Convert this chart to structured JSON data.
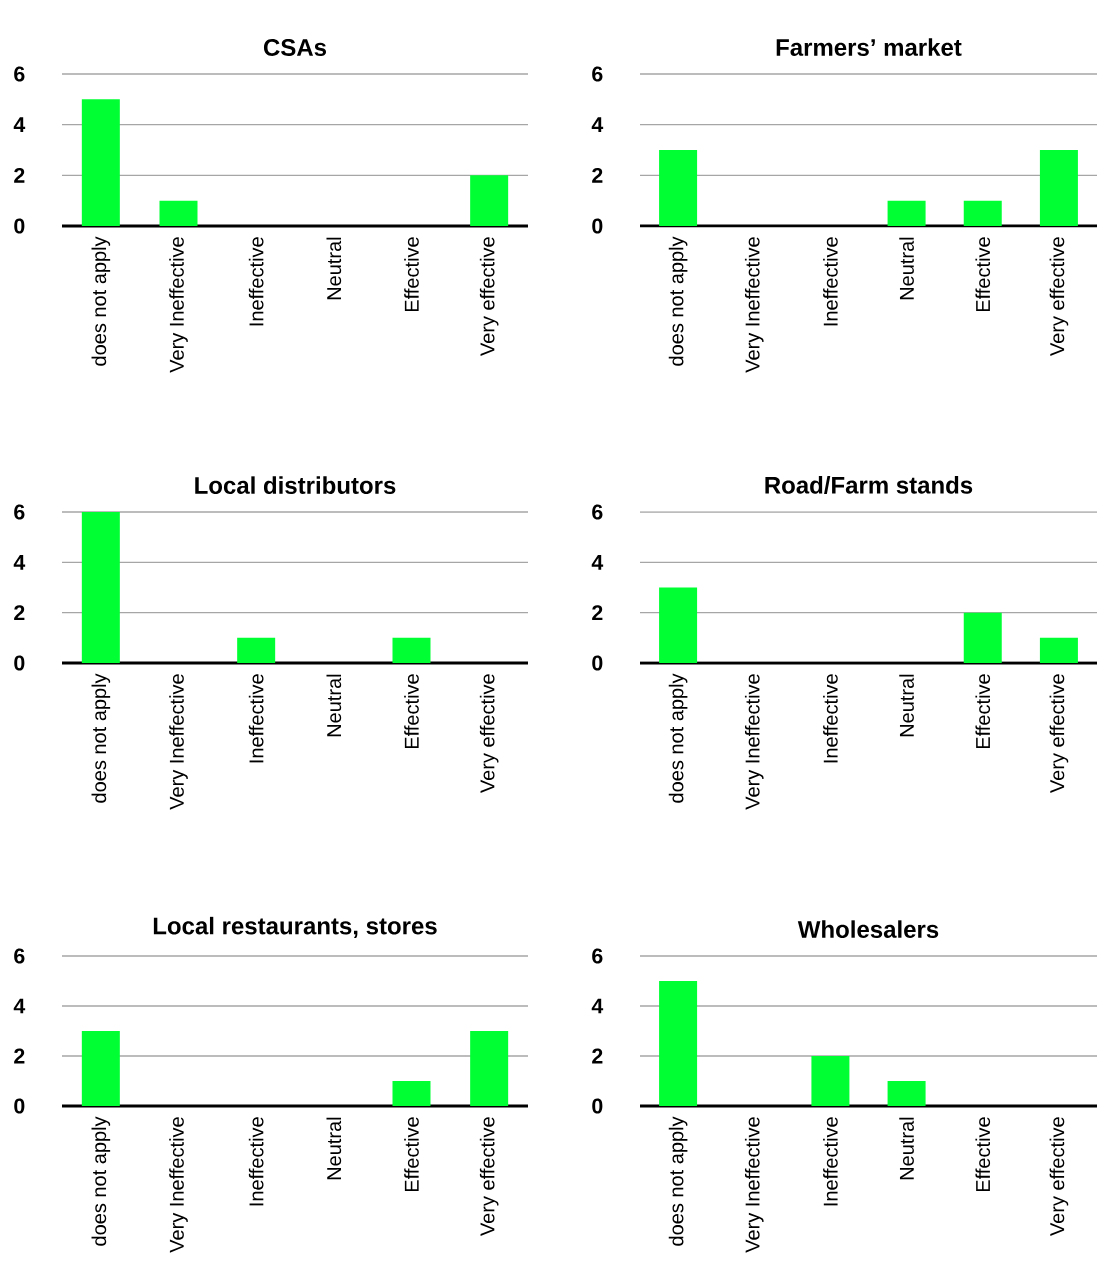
{
  "chart_data": [
    {
      "type": "bar",
      "title": "CSAs",
      "categories": [
        "does not apply",
        "Very Ineffective",
        "Ineffective",
        "Neutral",
        "Effective",
        "Very effective"
      ],
      "values": [
        5,
        1,
        0,
        0,
        0,
        2
      ],
      "color": "#00ff33",
      "ylim": [
        0,
        6
      ],
      "yticks": [
        0,
        2,
        4,
        6
      ],
      "grid": "y"
    },
    {
      "type": "bar",
      "title": "Farmers’ market",
      "categories": [
        "does not apply",
        "Very Ineffective",
        "Ineffective",
        "Neutral",
        "Effective",
        "Very effective"
      ],
      "values": [
        3,
        0,
        0,
        1,
        1,
        3
      ],
      "color": "#00ff33",
      "ylim": [
        0,
        6
      ],
      "yticks": [
        0,
        2,
        4,
        6
      ],
      "grid": "y"
    },
    {
      "type": "bar",
      "title": "Local distributors",
      "categories": [
        "does not apply",
        "Very Ineffective",
        "Ineffective",
        "Neutral",
        "Effective",
        "Very effective"
      ],
      "values": [
        6,
        0,
        1,
        0,
        1,
        0
      ],
      "color": "#00ff33",
      "ylim": [
        0,
        6
      ],
      "yticks": [
        0,
        2,
        4,
        6
      ],
      "grid": "y"
    },
    {
      "type": "bar",
      "title": "Road/Farm stands",
      "categories": [
        "does not apply",
        "Very Ineffective",
        "Ineffective",
        "Neutral",
        "Effective",
        "Very effective"
      ],
      "values": [
        3,
        0,
        0,
        0,
        2,
        1
      ],
      "color": "#00ff33",
      "ylim": [
        0,
        6
      ],
      "yticks": [
        0,
        2,
        4,
        6
      ],
      "grid": "y"
    },
    {
      "type": "bar",
      "title": "Local restaurants, stores",
      "categories": [
        "does not apply",
        "Very Ineffective",
        "Ineffective",
        "Neutral",
        "Effective",
        "Very effective"
      ],
      "values": [
        3,
        0,
        0,
        0,
        1,
        3
      ],
      "color": "#00ff33",
      "ylim": [
        0,
        6
      ],
      "yticks": [
        0,
        2,
        4,
        6
      ],
      "grid": "y"
    },
    {
      "type": "bar",
      "title": "Wholesalers",
      "categories": [
        "does not apply",
        "Very Ineffective",
        "Ineffective",
        "Neutral",
        "Effective",
        "Very effective"
      ],
      "values": [
        5,
        0,
        2,
        1,
        0,
        0
      ],
      "color": "#00ff33",
      "ylim": [
        0,
        6
      ],
      "yticks": [
        0,
        2,
        4,
        6
      ],
      "grid": "y"
    }
  ]
}
